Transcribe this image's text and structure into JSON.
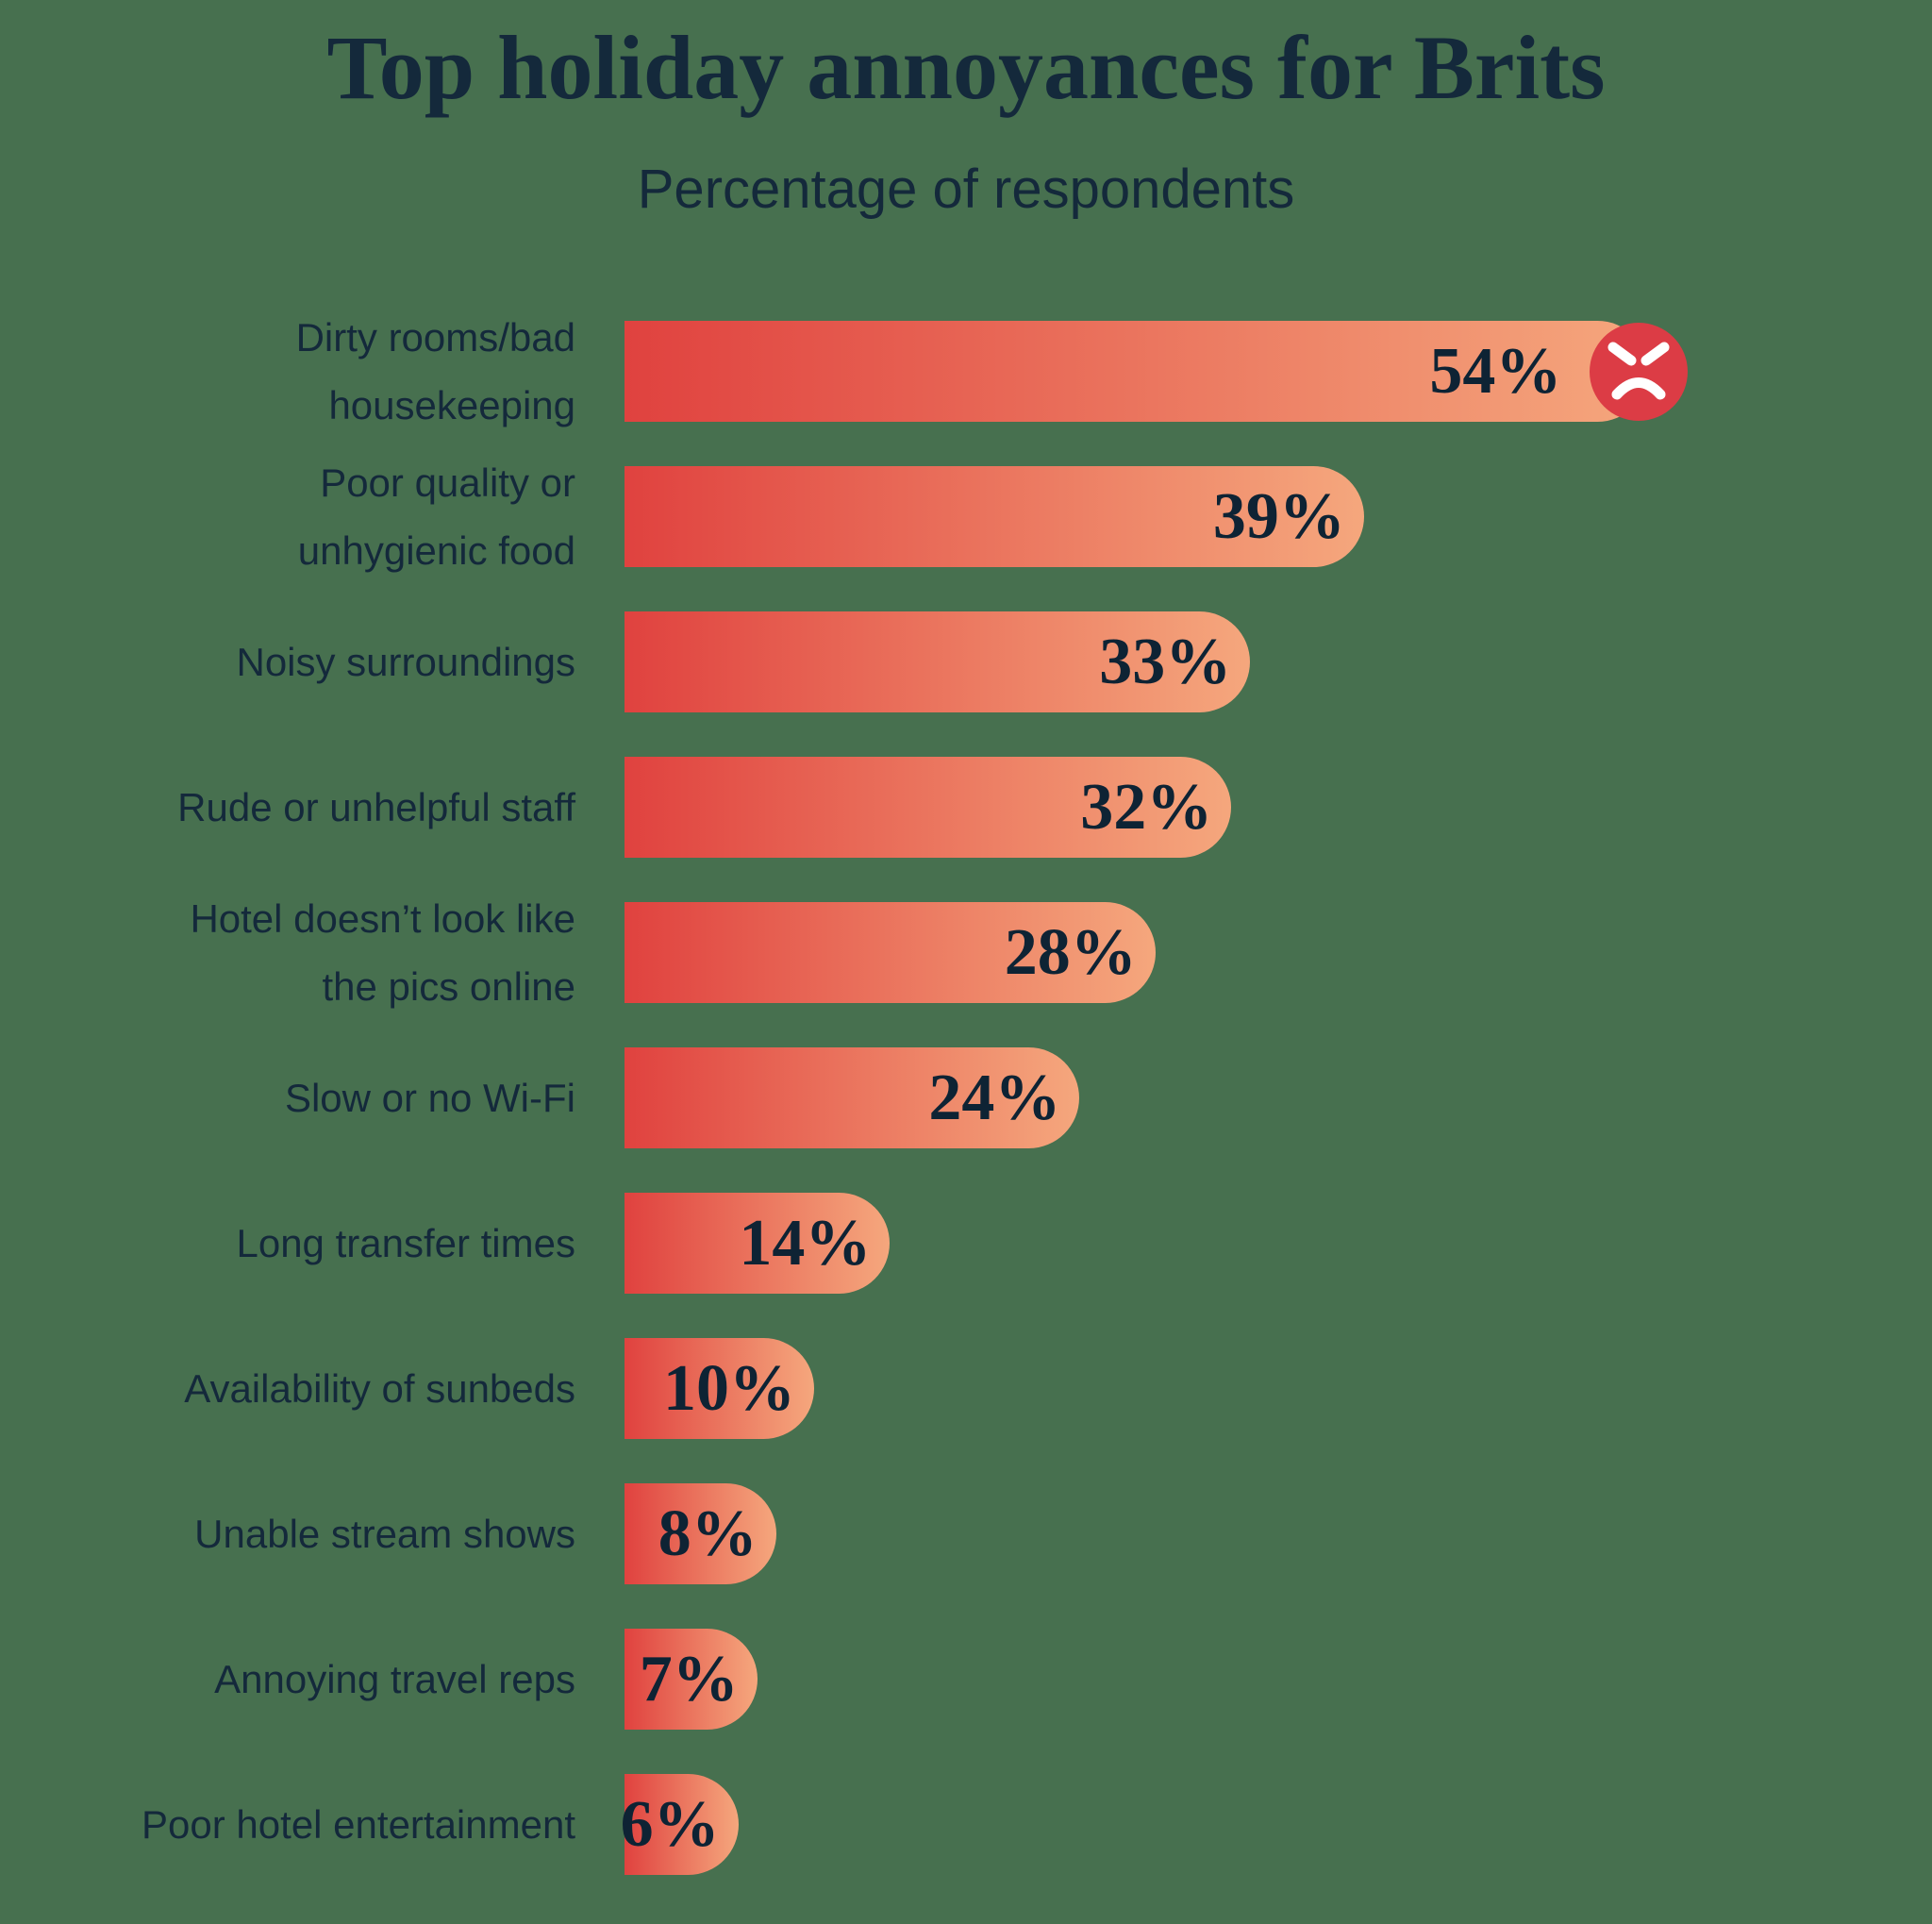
{
  "chart_data": {
    "type": "bar",
    "orientation": "horizontal",
    "title": "Top holiday annoyances for Brits",
    "subtitle": "Percentage of respondents",
    "unit": "%",
    "axis_visible": false,
    "grid": false,
    "legend": false,
    "xlim": [
      0,
      56
    ],
    "categories": [
      "Dirty rooms/bad\nhousekeeping",
      "Poor quality or\nunhygienic food",
      "Noisy surroundings",
      "Rude or unhelpful staff",
      "Hotel doesn’t look like\nthe pics online",
      "Slow or no Wi-Fi",
      "Long transfer times",
      "Availability of sunbeds",
      "Unable stream shows",
      "Annoying travel reps",
      "Poor hotel entertainment"
    ],
    "values": [
      54,
      39,
      33,
      32,
      28,
      24,
      14,
      10,
      8,
      7,
      6
    ],
    "value_labels": [
      "54%",
      "39%",
      "33%",
      "32%",
      "28%",
      "24%",
      "14%",
      "10%",
      "8%",
      "7%",
      "6%"
    ],
    "annotation": {
      "row_index": 0,
      "icon": "angry-face-icon"
    }
  },
  "colors": {
    "background": "#47704F",
    "bar_gradient_start": "#E0423F",
    "bar_gradient_end": "#F5A77D",
    "icon_circle": "#DC3C45",
    "icon_face": "#FFFFFF",
    "text": "#14293B",
    "value_text": "#0E2334"
  }
}
